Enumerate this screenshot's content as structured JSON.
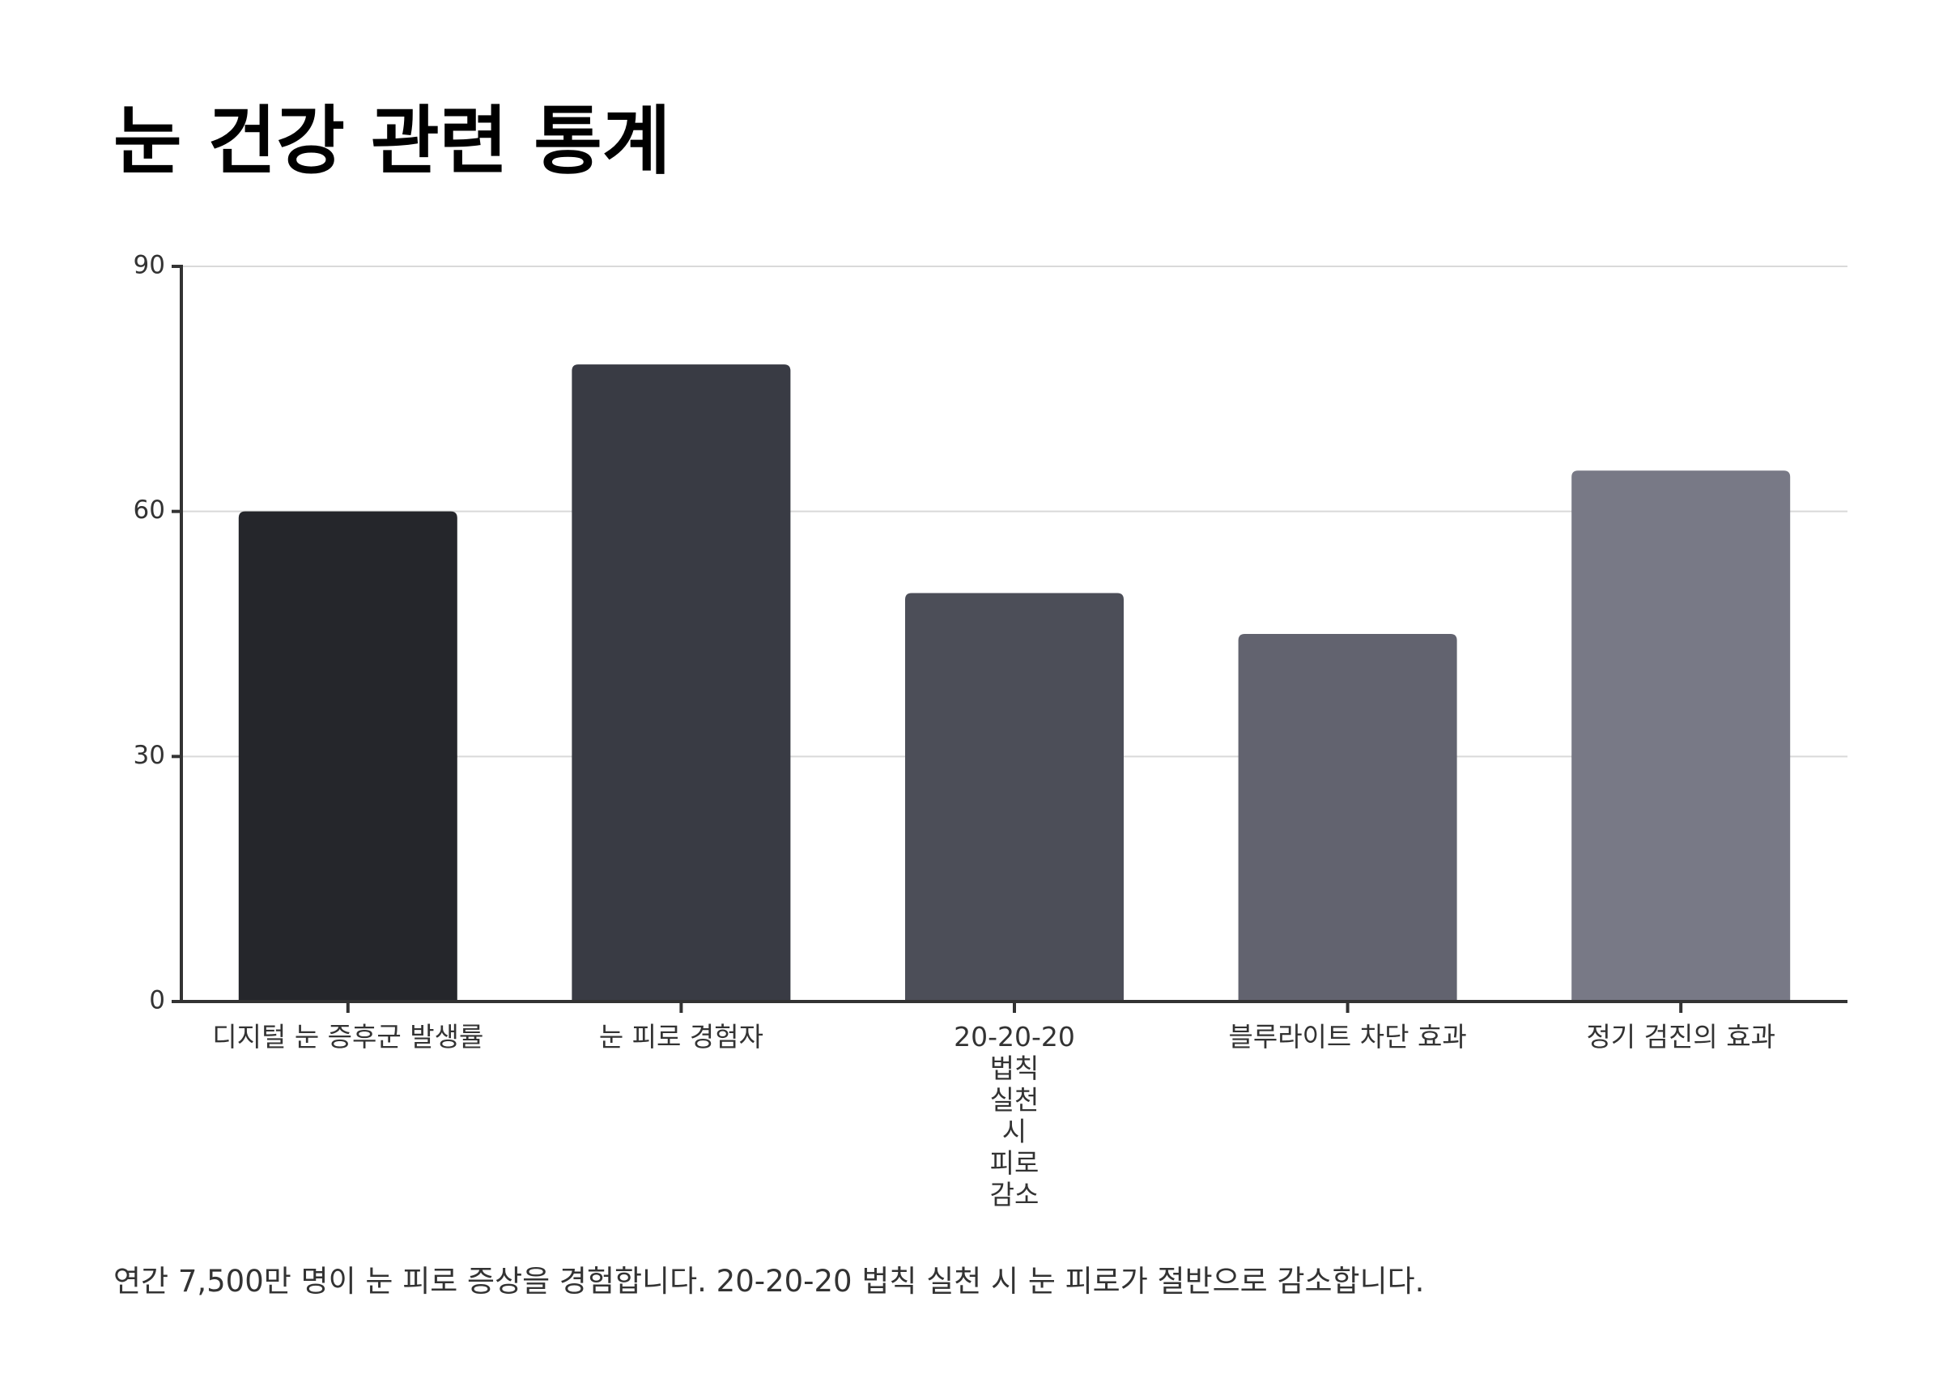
{
  "chart_data": {
    "type": "bar",
    "title": "눈 건강 관련 통계",
    "categories": [
      "디지털 눈 증후군 발생률",
      "눈 피로 경험자",
      "20-20-20 법칙 실천 시 피로 감소",
      "블루라이트 차단 효과",
      "정기 검진의 효과"
    ],
    "values": [
      60,
      78,
      50,
      45,
      65
    ],
    "colors": [
      "#25262b",
      "#393b44",
      "#4c4e58",
      "#62636f",
      "#787986"
    ],
    "ylim": [
      0,
      90
    ],
    "yticks": [
      0,
      30,
      60,
      90
    ],
    "grid": true,
    "caption": "연간 7,500만 명이 눈 피로 증상을 경험합니다. 20-20-20 법칙 실천 시 눈 피로가 절반으로 감소합니다."
  }
}
